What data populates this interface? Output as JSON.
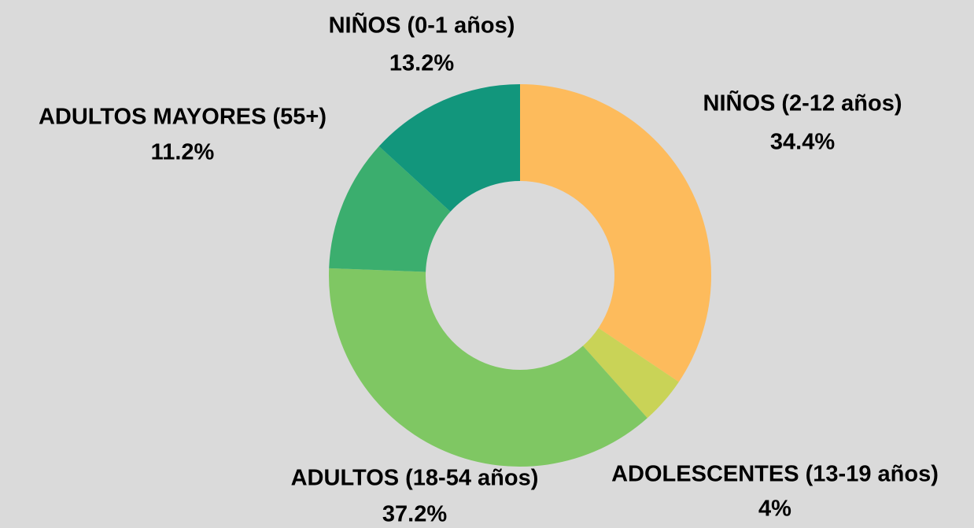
{
  "chart_data": {
    "type": "donut",
    "categories": [
      "NIÑOS (2-12 años)",
      "ADOLESCENTES (13-19 años)",
      "ADULTOS (18-54 años)",
      "ADULTOS MAYORES (55+)",
      "NIÑOS (0-1 años)"
    ],
    "values": [
      34.4,
      4,
      37.2,
      11.2,
      13.2
    ],
    "value_labels": [
      "34.4%",
      "4%",
      "37.2%",
      "11.2%",
      "13.2%"
    ],
    "colors": [
      "#fdbb5c",
      "#c9d357",
      "#7fc763",
      "#3bae6e",
      "#12967c"
    ]
  }
}
